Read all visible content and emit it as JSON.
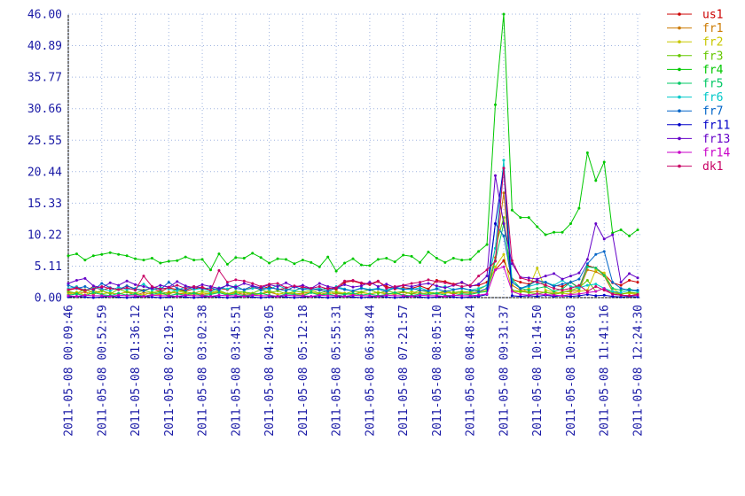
{
  "chart_data": {
    "type": "line",
    "categories": [
      "2011-05-08 00:09:46",
      null,
      null,
      null,
      "2011-05-08 00:52:59",
      null,
      null,
      null,
      "2011-05-08 01:36:12",
      null,
      null,
      null,
      "2011-05-08 02:19:25",
      null,
      null,
      null,
      "2011-05-08 03:02:38",
      null,
      null,
      null,
      "2011-05-08 03:45:51",
      null,
      null,
      null,
      "2011-05-08 04:29:05",
      null,
      null,
      null,
      "2011-05-08 05:12:18",
      null,
      null,
      null,
      "2011-05-08 05:55:31",
      null,
      null,
      null,
      "2011-05-08 06:38:44",
      null,
      null,
      null,
      "2011-05-08 07:21:57",
      null,
      null,
      null,
      "2011-05-08 08:05:10",
      null,
      null,
      null,
      "2011-05-08 08:48:24",
      null,
      null,
      null,
      "2011-05-08 09:31:37",
      null,
      null,
      null,
      "2011-05-08 10:14:50",
      null,
      null,
      null,
      "2011-05-08 10:58:03",
      null,
      null,
      null,
      "2011-05-08 11:41:16",
      null,
      null,
      null,
      "2011-05-08 12:24:30"
    ],
    "ylim": [
      0,
      46
    ],
    "yticks": [
      {
        "value": 0,
        "label": "0.00"
      },
      5.11,
      10.22,
      15.33,
      20.44,
      25.55,
      30.66,
      35.77,
      40.89,
      {
        "value": 46,
        "label": "46.00"
      }
    ],
    "grid": true,
    "legend": "right",
    "series": [
      {
        "name": "us1",
        "color": "#cc0000",
        "values": [
          1.2,
          1.5,
          1.0,
          1.8,
          1.2,
          1.6,
          1.3,
          1.9,
          1.4,
          1.2,
          1.5,
          1.0,
          1.6,
          1.3,
          1.1,
          1.4,
          1.7,
          1.2,
          1.5,
          1.3,
          1.9,
          1.2,
          1.6,
          1.4,
          1.8,
          1.3,
          1.5,
          1.1,
          1.7,
          1.4,
          1.2,
          1.6,
          1.3,
          2.5,
          2.7,
          2.3,
          2.1,
          2.6,
          1.8,
          1.4,
          1.6,
          1.5,
          1.9,
          1.4,
          2.8,
          2.6,
          2.2,
          2.4,
          1.9,
          2.0,
          2.5,
          4.5,
          6.0,
          3.0,
          2.5,
          2.2,
          2.8,
          2.4,
          2.0,
          1.8,
          2.5,
          1.6,
          5.2,
          4.8,
          3.8,
          2.4,
          2.0,
          2.8,
          2.5
        ]
      },
      {
        "name": "fr1",
        "color": "#cc7a00",
        "values": [
          0.8,
          0.6,
          0.9,
          0.5,
          1.1,
          0.7,
          0.6,
          0.9,
          0.4,
          0.8,
          0.6,
          0.5,
          0.9,
          0.7,
          0.6,
          0.8,
          0.5,
          0.7,
          0.9,
          0.6,
          0.8,
          0.5,
          0.7,
          0.6,
          0.9,
          0.5,
          0.8,
          0.6,
          0.7,
          0.9,
          0.5,
          0.8,
          0.6,
          0.7,
          0.5,
          0.9,
          0.6,
          0.8,
          0.7,
          0.5,
          0.9,
          0.6,
          0.8,
          0.5,
          0.7,
          0.9,
          0.6,
          0.8,
          0.7,
          0.9,
          1.5,
          6.5,
          17.0,
          2.0,
          1.2,
          0.9,
          1.0,
          0.8,
          0.7,
          0.9,
          1.0,
          1.2,
          4.5,
          4.2,
          3.5,
          1.0,
          0.6,
          0.8,
          0.7
        ]
      },
      {
        "name": "fr2",
        "color": "#c8c800",
        "values": [
          0.5,
          0.9,
          0.4,
          1.2,
          0.6,
          0.8,
          0.5,
          1.0,
          0.7,
          0.4,
          0.9,
          0.6,
          0.5,
          1.1,
          0.7,
          0.4,
          0.8,
          0.6,
          1.0,
          0.5,
          0.7,
          0.9,
          0.4,
          0.6,
          1.2,
          0.5,
          0.8,
          0.7,
          0.4,
          0.9,
          0.6,
          0.5,
          1.0,
          0.7,
          0.4,
          0.8,
          0.6,
          0.9,
          0.5,
          0.7,
          0.4,
          1.0,
          0.6,
          0.8,
          0.5,
          0.7,
          0.9,
          0.6,
          0.5,
          0.8,
          1.2,
          5.0,
          7.0,
          1.0,
          0.9,
          1.5,
          4.8,
          1.2,
          0.9,
          0.7,
          0.6,
          1.0,
          1.2,
          4.5,
          4.0,
          1.5,
          0.6,
          0.7,
          0.5
        ]
      },
      {
        "name": "fr3",
        "color": "#66c800",
        "values": [
          1.0,
          0.7,
          1.3,
          0.8,
          1.1,
          0.6,
          1.4,
          0.9,
          0.7,
          1.2,
          0.8,
          1.0,
          0.6,
          1.3,
          0.9,
          0.7,
          1.1,
          0.8,
          1.2,
          0.6,
          1.0,
          0.9,
          0.7,
          1.3,
          0.8,
          1.1,
          0.6,
          1.0,
          0.9,
          1.2,
          0.7,
          1.1,
          0.8,
          0.6,
          1.0,
          0.9,
          1.3,
          0.7,
          1.1,
          0.8,
          1.0,
          0.6,
          1.2,
          0.9,
          0.7,
          1.1,
          0.8,
          1.0,
          0.9,
          1.3,
          2.0,
          8.0,
          13.0,
          1.2,
          1.0,
          0.8,
          0.6,
          0.9,
          0.5,
          0.8,
          1.2,
          1.6,
          2.8,
          1.0,
          1.5,
          0.8,
          0.5,
          0.9,
          0.7
        ]
      },
      {
        "name": "fr4",
        "color": "#00c800",
        "values": [
          6.8,
          7.1,
          6.1,
          6.8,
          7.0,
          7.3,
          7.0,
          6.8,
          6.3,
          6.1,
          6.4,
          5.6,
          5.9,
          6.0,
          6.6,
          6.1,
          6.2,
          4.5,
          7.1,
          5.4,
          6.5,
          6.4,
          7.2,
          6.5,
          5.6,
          6.3,
          6.2,
          5.5,
          6.1,
          5.7,
          5.0,
          6.6,
          4.3,
          5.6,
          6.3,
          5.3,
          5.2,
          6.2,
          6.4,
          5.8,
          6.9,
          6.7,
          5.7,
          7.4,
          6.4,
          5.7,
          6.4,
          6.1,
          6.2,
          7.5,
          8.6,
          31.3,
          46.0,
          14.2,
          13.0,
          13.0,
          11.5,
          10.2,
          10.6,
          10.6,
          12.0,
          14.5,
          23.5,
          19.0,
          22.0,
          10.5,
          11.0,
          10.0,
          11.0
        ]
      },
      {
        "name": "fr5",
        "color": "#00c864",
        "values": [
          0.4,
          0.6,
          0.3,
          0.8,
          0.5,
          0.3,
          0.7,
          0.4,
          0.6,
          0.2,
          0.5,
          0.8,
          0.3,
          0.6,
          0.4,
          0.7,
          0.3,
          0.5,
          0.8,
          0.4,
          0.6,
          0.3,
          0.5,
          0.7,
          0.4,
          0.2,
          0.6,
          0.5,
          0.3,
          0.8,
          0.4,
          0.6,
          0.3,
          0.5,
          0.7,
          0.4,
          0.6,
          0.3,
          0.5,
          0.8,
          0.4,
          0.3,
          0.6,
          0.5,
          0.7,
          0.4,
          0.3,
          0.6,
          0.5,
          0.8,
          1.0,
          6.0,
          12.0,
          3.0,
          1.5,
          1.2,
          1.5,
          1.8,
          1.0,
          1.4,
          2.5,
          1.5,
          5.0,
          4.8,
          3.6,
          1.5,
          1.2,
          1.4,
          1.0
        ]
      },
      {
        "name": "fr6",
        "color": "#00c8c8",
        "values": [
          1.5,
          1.8,
          1.2,
          1.6,
          1.4,
          1.1,
          1.7,
          1.3,
          1.5,
          2.2,
          1.2,
          1.6,
          1.4,
          1.1,
          1.8,
          1.3,
          1.5,
          1.0,
          1.6,
          1.4,
          1.9,
          1.2,
          1.5,
          1.7,
          1.3,
          2.0,
          1.4,
          1.1,
          1.6,
          1.3,
          1.5,
          1.2,
          1.8,
          1.4,
          1.1,
          1.6,
          1.3,
          1.5,
          1.2,
          1.7,
          1.4,
          1.3,
          1.6,
          1.1,
          1.5,
          1.8,
          1.3,
          1.6,
          1.2,
          1.5,
          2.0,
          8.0,
          22.3,
          2.5,
          1.5,
          1.8,
          2.2,
          2.5,
          2.0,
          2.8,
          1.8,
          1.6,
          2.0,
          2.2,
          1.5,
          1.0,
          0.8,
          1.2,
          1.0
        ]
      },
      {
        "name": "fr7",
        "color": "#0064c8",
        "values": [
          2.0,
          1.5,
          1.8,
          1.2,
          2.3,
          1.6,
          1.3,
          1.9,
          1.4,
          1.1,
          1.7,
          1.3,
          2.5,
          1.5,
          1.2,
          1.8,
          1.4,
          1.6,
          1.2,
          2.1,
          1.5,
          1.3,
          1.9,
          1.2,
          1.6,
          1.4,
          1.1,
          1.8,
          1.3,
          1.5,
          1.2,
          1.0,
          1.6,
          1.3,
          1.1,
          1.5,
          1.2,
          1.4,
          1.0,
          1.6,
          1.3,
          1.5,
          1.2,
          1.1,
          1.4,
          1.0,
          1.3,
          1.5,
          1.2,
          1.0,
          1.5,
          12.0,
          10.0,
          2.5,
          1.5,
          2.0,
          2.8,
          2.5,
          1.8,
          2.2,
          2.5,
          3.0,
          5.5,
          7.0,
          7.5,
          2.5,
          1.5,
          1.2,
          1.2
        ]
      },
      {
        "name": "fr11",
        "color": "#0000c8",
        "values": [
          0.1,
          0.2,
          0.1,
          0.0,
          0.1,
          0.2,
          0.1,
          0.0,
          0.1,
          0.2,
          0.1,
          0.0,
          0.1,
          0.2,
          0.1,
          0.0,
          0.1,
          0.2,
          0.1,
          0.0,
          0.1,
          0.2,
          0.1,
          0.0,
          0.1,
          0.2,
          0.1,
          0.0,
          0.1,
          0.2,
          0.1,
          0.0,
          0.1,
          0.2,
          0.1,
          0.0,
          0.1,
          0.2,
          0.1,
          0.0,
          0.1,
          0.2,
          0.1,
          0.0,
          0.1,
          0.2,
          0.1,
          0.0,
          0.1,
          0.2,
          0.5,
          12.0,
          21.0,
          0.3,
          0.2,
          0.3,
          0.2,
          0.4,
          0.2,
          0.3,
          0.2,
          0.3,
          0.5,
          0.3,
          0.4,
          0.2,
          0.1,
          0.2,
          0.1
        ]
      },
      {
        "name": "fr13",
        "color": "#6400c8",
        "values": [
          2.3,
          2.8,
          3.1,
          1.9,
          1.6,
          2.4,
          2.0,
          2.7,
          2.1,
          1.8,
          1.5,
          2.0,
          1.7,
          2.6,
          1.9,
          1.6,
          2.1,
          1.8,
          1.5,
          2.0,
          1.7,
          2.3,
          1.9,
          1.6,
          2.1,
          1.8,
          2.4,
          1.7,
          2.0,
          1.5,
          2.3,
          1.8,
          1.6,
          2.1,
          1.7,
          1.9,
          2.5,
          1.8,
          2.2,
          1.6,
          2.0,
          1.8,
          2.1,
          2.3,
          1.9,
          1.6,
          2.0,
          2.5,
          1.8,
          2.2,
          3.5,
          19.8,
          12.0,
          5.5,
          3.3,
          3.2,
          3.0,
          3.5,
          3.9,
          3.0,
          3.5,
          4.0,
          6.2,
          12.0,
          9.5,
          10.2,
          2.5,
          3.9,
          3.2
        ]
      },
      {
        "name": "fr14",
        "color": "#c800c8",
        "values": [
          0.3,
          0.2,
          0.4,
          0.3,
          0.3,
          0.2,
          0.4,
          0.3,
          0.3,
          0.2,
          0.4,
          0.3,
          0.3,
          0.2,
          0.4,
          0.3,
          0.3,
          0.2,
          0.4,
          0.3,
          0.3,
          0.2,
          0.4,
          0.3,
          0.3,
          0.2,
          0.4,
          0.3,
          0.3,
          0.2,
          0.4,
          0.3,
          0.3,
          0.2,
          0.4,
          0.3,
          0.3,
          0.2,
          0.4,
          0.3,
          0.3,
          0.2,
          0.4,
          0.3,
          0.3,
          0.2,
          0.4,
          0.3,
          0.3,
          0.4,
          0.6,
          4.5,
          5.0,
          1.0,
          0.5,
          0.4,
          0.6,
          0.5,
          0.4,
          0.3,
          0.5,
          0.6,
          0.8,
          1.0,
          1.5,
          0.5,
          0.4,
          0.3,
          0.4
        ]
      },
      {
        "name": "dk1",
        "color": "#c80064",
        "values": [
          1.3,
          1.6,
          1.2,
          1.4,
          1.8,
          1.5,
          1.3,
          1.6,
          1.2,
          3.5,
          1.8,
          1.4,
          1.6,
          2.0,
          1.5,
          1.8,
          1.6,
          1.2,
          4.4,
          2.5,
          2.9,
          2.7,
          2.3,
          1.8,
          2.2,
          2.3,
          1.6,
          1.9,
          1.7,
          1.5,
          1.8,
          1.4,
          1.6,
          2.7,
          2.8,
          2.4,
          2.2,
          2.7,
          1.5,
          1.8,
          2.0,
          2.3,
          2.5,
          2.9,
          2.6,
          2.4,
          2.1,
          1.8,
          2.0,
          3.5,
          4.5,
          5.9,
          21.0,
          6.0,
          3.2,
          2.8,
          2.5,
          2.0,
          1.5,
          1.2,
          1.5,
          2.0,
          1.0,
          1.8,
          1.2,
          0.6,
          0.4,
          0.3,
          0.5
        ]
      }
    ]
  }
}
